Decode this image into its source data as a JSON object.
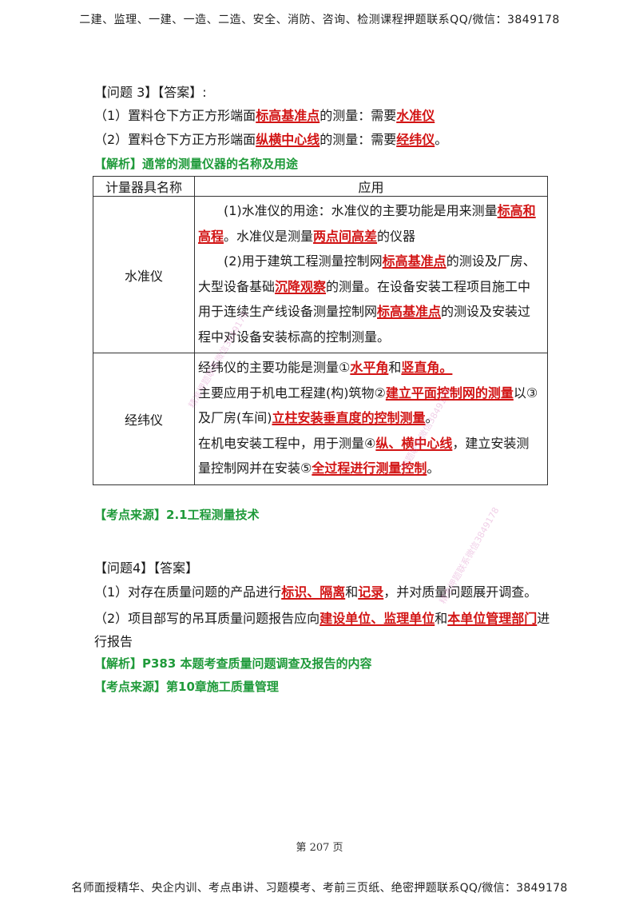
{
  "header": {
    "text": "二建、监理、一建、一造、二造、安全、消防、咨询、检测课程押题联系QQ/微信：3849178"
  },
  "q3": {
    "heading": "【问题 3】【答案】:",
    "a1": {
      "pre": "（1）置料仓下方正方形端面",
      "hl1": "标高基准点",
      "mid": "的测量：需要",
      "hl2": "水准仪"
    },
    "a2": {
      "pre": "（2）置料仓下方正方形端面",
      "hl1": "纵横中心线",
      "mid": "的测量：需要",
      "hl2": "经纬仪",
      "post": "。"
    },
    "analysis": "【解析】通常的测量仪器的名称及用途"
  },
  "table": {
    "headers": [
      "计量器具名称",
      "应用"
    ],
    "rows": [
      {
        "name": "水准仪",
        "p1": {
          "t1": "(1)水准仪的用途：水准仪的主要功能是用来测量",
          "h1": "标高和高程",
          "t2": "。水准仪是测量",
          "h2": "两点间高差",
          "t3": "的仪器"
        },
        "p2": {
          "t1": "(2)用于建筑工程测量控制网",
          "h1": "标高基准点",
          "t2": "的测设及厂房、大型设备基础",
          "h2": "沉降观察",
          "t3": "的测量。在设备安装工程项目施工中用于连续生产线设备测量控制网",
          "h3": "标高基准点",
          "t4": "的测设及安装过程中对设备安装标高的控制测量。"
        }
      },
      {
        "name": "经纬仪",
        "l1": {
          "t1": "经纬仪的主要功能是测量①",
          "h1": "水平角",
          "t2": "和",
          "h2": "竖直角。"
        },
        "l2": {
          "t1": "主要应用于机电工程建(构)筑物②",
          "h1": "建立平面控制网的测量",
          "t2": "以③及厂房(车间)",
          "h2": "立柱安装垂直度的控制测量",
          "t3": "。"
        },
        "l3": {
          "t1": "在机电安装工程中，用于测量④",
          "h1": "纵、横中心线",
          "t2": "，建立安装测量控制网并在安装⑤",
          "h2": "全过程进行测量控制",
          "t3": "。"
        }
      }
    ]
  },
  "source1": "【考点来源】2.1工程测量技术",
  "q4": {
    "heading": "【问题4】【答案】",
    "a1": {
      "pre": "（1）对存在质量问题的产品进行",
      "h1": "标识、隔离",
      "t2": "和",
      "h2": "记录",
      "post": "，并对质量问题展开调查。"
    },
    "a2": {
      "pre": "（2）项目部写的吊耳质量问题报告应向",
      "h1": "建设单位、监理单位",
      "t2": "和",
      "h2": "本单位管理部门",
      "post": "进行报告"
    },
    "analysis": "【解析】P383  本题考查质量问题调查及报告的内容",
    "source": "【考点来源】第10章施工质量管理"
  },
  "page_number": "第 207 页",
  "footer": {
    "text": "名师面授精华、央企内训、考点串讲、习题模考、考前三页纸、绝密押题联系QQ/微信：3849178"
  },
  "watermarks": [
    "精准押题联系微信3849178",
    "精准押题联系微信3849178",
    "押题联系微信3849178"
  ],
  "colors": {
    "highlight": "#d21414",
    "green": "#1f9a3a"
  }
}
